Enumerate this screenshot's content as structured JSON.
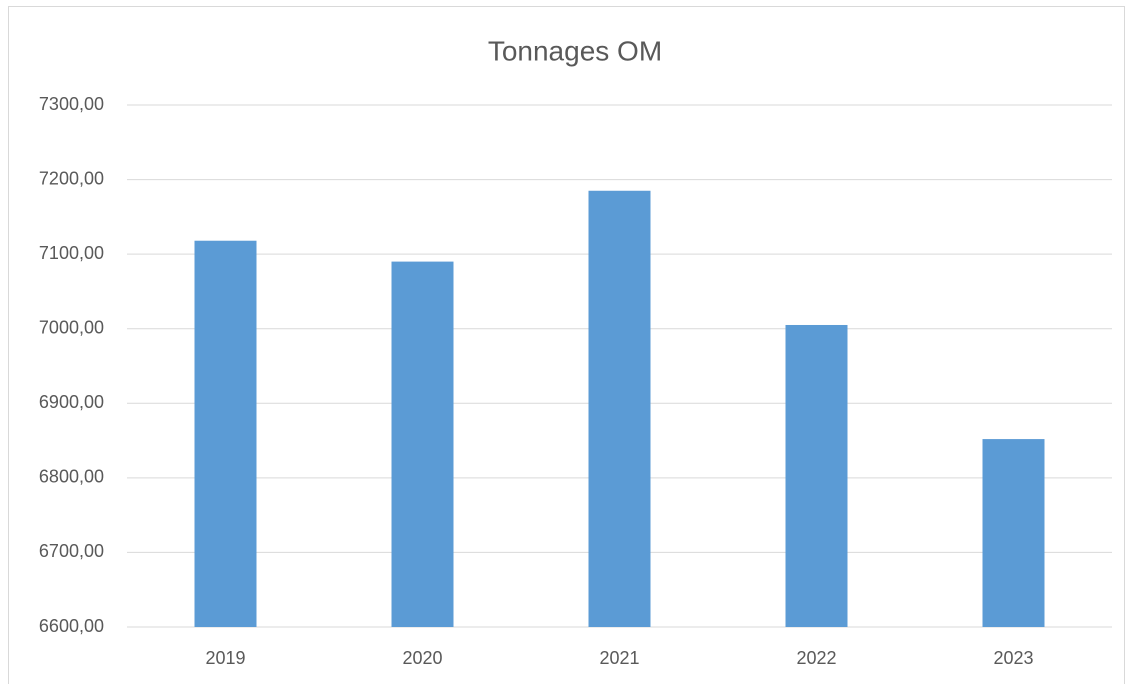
{
  "chart_data": {
    "type": "bar",
    "title": "Tonnages OM",
    "categories": [
      "2019",
      "2020",
      "2021",
      "2022",
      "2023"
    ],
    "values": [
      7118,
      7090,
      7185,
      7005,
      6852
    ],
    "color": "#5b9bd5",
    "ylim": [
      6600,
      7300
    ],
    "yticks": [
      {
        "value": 6600,
        "label": "6600,00"
      },
      {
        "value": 6700,
        "label": "6700,00"
      },
      {
        "value": 6800,
        "label": "6800,00"
      },
      {
        "value": 6900,
        "label": "6900,00"
      },
      {
        "value": 7000,
        "label": "7000,00"
      },
      {
        "value": 7100,
        "label": "7100,00"
      },
      {
        "value": 7200,
        "label": "7200,00"
      },
      {
        "value": 7300,
        "label": "7300,00"
      }
    ],
    "grid": true
  }
}
